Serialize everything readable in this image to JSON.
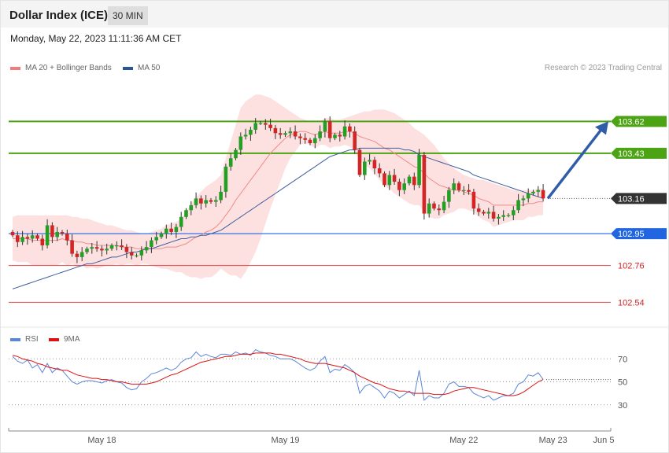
{
  "header": {
    "title": "Dollar Index (ICE)",
    "timeframe": "30 MIN"
  },
  "datetime": "Monday, May 22, 2023 11:11:36 AM CET",
  "legend": {
    "ma20_label": "MA 20 + Bollinger Bands",
    "ma20_color": "#f27b7b",
    "ma50_label": "MA 50",
    "ma50_color": "#2b5597",
    "credit": "Research © 2023 Trading Central"
  },
  "rsi_legend": {
    "rsi_label": "RSI",
    "rsi_color": "#5b86d6",
    "ma9_label": "9MA",
    "ma9_color": "#dd1111"
  },
  "chart_data": [
    {
      "type": "candlestick",
      "ylim": [
        102.42,
        103.8
      ],
      "x_ticks": [
        "May 18",
        "May 19",
        "May 22",
        "May 23",
        "Jun 5"
      ],
      "levels": [
        {
          "value": 103.62,
          "label": "103.62",
          "kind": "resistance",
          "color": "#4ca313"
        },
        {
          "value": 103.43,
          "label": "103.43",
          "kind": "resistance",
          "color": "#4ca313"
        },
        {
          "value": 103.16,
          "label": "103.16",
          "kind": "last",
          "color": "#333333"
        },
        {
          "value": 102.95,
          "label": "102.95",
          "kind": "pivot",
          "color": "#2166e0"
        },
        {
          "value": 102.76,
          "label": "102.76",
          "kind": "support",
          "color": "#e04545"
        },
        {
          "value": 102.54,
          "label": "102.54",
          "kind": "support",
          "color": "#e04545"
        }
      ],
      "closes": [
        102.94,
        102.9,
        102.93,
        102.92,
        102.94,
        102.92,
        102.88,
        103.0,
        102.93,
        102.96,
        102.95,
        102.91,
        102.83,
        102.81,
        102.84,
        102.86,
        102.87,
        102.86,
        102.85,
        102.86,
        102.88,
        102.88,
        102.87,
        102.84,
        102.82,
        102.82,
        102.85,
        102.87,
        102.91,
        102.93,
        102.95,
        102.98,
        102.96,
        102.99,
        103.05,
        103.09,
        103.12,
        103.16,
        103.13,
        103.15,
        103.14,
        103.15,
        103.2,
        103.35,
        103.4,
        103.45,
        103.53,
        103.54,
        103.57,
        103.61,
        103.61,
        103.6,
        103.58,
        103.55,
        103.54,
        103.55,
        103.56,
        103.53,
        103.52,
        103.51,
        103.49,
        103.52,
        103.56,
        103.62,
        103.52,
        103.54,
        103.53,
        103.59,
        103.56,
        103.45,
        103.3,
        103.38,
        103.39,
        103.34,
        103.31,
        103.24,
        103.3,
        103.26,
        103.21,
        103.25,
        103.29,
        103.24,
        103.42,
        103.07,
        103.13,
        103.1,
        103.09,
        103.14,
        103.21,
        103.25,
        103.21,
        103.21,
        103.2,
        103.1,
        103.08,
        103.07,
        103.08,
        103.04,
        103.05,
        103.06,
        103.06,
        103.09,
        103.15,
        103.16,
        103.19,
        103.2,
        103.21,
        103.16
      ],
      "ma20": [
        102.92,
        102.92,
        102.92,
        102.92,
        102.91,
        102.91,
        102.91,
        102.91,
        102.91,
        102.91,
        102.92,
        102.91,
        102.91,
        102.9,
        102.9,
        102.89,
        102.89,
        102.88,
        102.88,
        102.88,
        102.88,
        102.88,
        102.87,
        102.87,
        102.87,
        102.86,
        102.86,
        102.86,
        102.86,
        102.86,
        102.86,
        102.87,
        102.87,
        102.87,
        102.88,
        102.89,
        102.91,
        102.93,
        102.94,
        102.96,
        102.97,
        102.99,
        103.02,
        103.06,
        103.1,
        103.15,
        103.19,
        103.23,
        103.27,
        103.31,
        103.35,
        103.39,
        103.43,
        103.46,
        103.49,
        103.52,
        103.54,
        103.55,
        103.56,
        103.56,
        103.55,
        103.54,
        103.55,
        103.56,
        103.55,
        103.55,
        103.55,
        103.56,
        103.56,
        103.55,
        103.53,
        103.52,
        103.51,
        103.5,
        103.48,
        103.46,
        103.45,
        103.43,
        103.41,
        103.39,
        103.37,
        103.35,
        103.34,
        103.31,
        103.28,
        103.26,
        103.24,
        103.23,
        103.22,
        103.21,
        103.21,
        103.2,
        103.19,
        103.18,
        103.16,
        103.15,
        103.14,
        103.12,
        103.12,
        103.12,
        103.12,
        103.12,
        103.12,
        103.12,
        103.13,
        103.13,
        103.14,
        103.14
      ],
      "bb_upper": [
        103.05,
        103.06,
        103.06,
        103.06,
        103.06,
        103.06,
        103.06,
        103.06,
        103.06,
        103.06,
        103.06,
        103.06,
        103.05,
        103.05,
        103.04,
        103.04,
        103.03,
        103.02,
        103.01,
        103.0,
        103.0,
        102.99,
        102.98,
        102.97,
        102.97,
        102.96,
        102.95,
        102.95,
        102.96,
        102.97,
        102.98,
        103.0,
        103.01,
        103.02,
        103.04,
        103.08,
        103.13,
        103.17,
        103.2,
        103.23,
        103.25,
        103.27,
        103.3,
        103.4,
        103.5,
        103.6,
        103.7,
        103.74,
        103.76,
        103.78,
        103.78,
        103.77,
        103.76,
        103.74,
        103.72,
        103.7,
        103.68,
        103.66,
        103.64,
        103.63,
        103.62,
        103.62,
        103.62,
        103.64,
        103.64,
        103.63,
        103.63,
        103.64,
        103.65,
        103.66,
        103.67,
        103.68,
        103.68,
        103.69,
        103.69,
        103.69,
        103.68,
        103.67,
        103.65,
        103.63,
        103.61,
        103.58,
        103.56,
        103.54,
        103.51,
        103.48,
        103.44,
        103.4,
        103.37,
        103.34,
        103.32,
        103.3,
        103.29,
        103.28,
        103.27,
        103.27,
        103.26,
        103.25,
        103.24,
        103.23,
        103.22,
        103.21,
        103.21,
        103.21,
        103.21,
        103.21,
        103.22,
        103.22
      ],
      "bb_lower": [
        102.79,
        102.78,
        102.78,
        102.78,
        102.76,
        102.76,
        102.76,
        102.76,
        102.76,
        102.76,
        102.78,
        102.76,
        102.77,
        102.75,
        102.76,
        102.74,
        102.75,
        102.74,
        102.75,
        102.76,
        102.76,
        102.77,
        102.76,
        102.77,
        102.77,
        102.76,
        102.77,
        102.77,
        102.76,
        102.75,
        102.74,
        102.74,
        102.73,
        102.72,
        102.72,
        102.7,
        102.69,
        102.69,
        102.68,
        102.69,
        102.69,
        102.71,
        102.74,
        102.72,
        102.7,
        102.7,
        102.68,
        102.72,
        102.78,
        102.84,
        102.92,
        103.01,
        103.1,
        103.18,
        103.26,
        103.34,
        103.4,
        103.44,
        103.48,
        103.49,
        103.48,
        103.46,
        103.48,
        103.48,
        103.46,
        103.47,
        103.47,
        103.48,
        103.47,
        103.44,
        103.39,
        103.36,
        103.34,
        103.31,
        103.27,
        103.23,
        103.22,
        103.19,
        103.17,
        103.15,
        103.13,
        103.12,
        103.12,
        103.08,
        103.05,
        103.04,
        103.04,
        103.06,
        103.07,
        103.08,
        103.1,
        103.1,
        103.09,
        103.08,
        103.05,
        103.03,
        103.02,
        102.99,
        103.0,
        103.01,
        103.02,
        103.03,
        103.03,
        103.03,
        103.05,
        103.05,
        103.06,
        103.06
      ],
      "ma50": [
        102.62,
        102.63,
        102.64,
        102.65,
        102.66,
        102.67,
        102.68,
        102.69,
        102.7,
        102.71,
        102.72,
        102.73,
        102.74,
        102.75,
        102.76,
        102.77,
        102.77,
        102.78,
        102.79,
        102.8,
        102.81,
        102.81,
        102.82,
        102.83,
        102.84,
        102.84,
        102.85,
        102.86,
        102.86,
        102.87,
        102.88,
        102.89,
        102.9,
        102.91,
        102.92,
        102.92,
        102.93,
        102.93,
        102.94,
        102.94,
        102.95,
        102.96,
        102.97,
        102.99,
        103.01,
        103.03,
        103.05,
        103.07,
        103.09,
        103.11,
        103.13,
        103.15,
        103.17,
        103.19,
        103.21,
        103.23,
        103.25,
        103.27,
        103.29,
        103.31,
        103.33,
        103.35,
        103.37,
        103.39,
        103.41,
        103.42,
        103.43,
        103.44,
        103.45,
        103.45,
        103.46,
        103.46,
        103.46,
        103.46,
        103.46,
        103.46,
        103.46,
        103.46,
        103.46,
        103.45,
        103.45,
        103.44,
        103.42,
        103.41,
        103.4,
        103.39,
        103.38,
        103.37,
        103.36,
        103.35,
        103.34,
        103.33,
        103.32,
        103.3,
        103.29,
        103.28,
        103.27,
        103.26,
        103.25,
        103.24,
        103.23,
        103.22,
        103.21,
        103.2,
        103.19,
        103.18,
        103.17,
        103.16
      ],
      "projection": {
        "from": 103.16,
        "to": 103.62
      }
    },
    {
      "type": "line",
      "ylim": [
        10,
        90
      ],
      "y_ticks": [
        30,
        50,
        70
      ],
      "series": [
        {
          "name": "RSI",
          "values": [
            72,
            68,
            66,
            69,
            62,
            65,
            58,
            66,
            58,
            62,
            60,
            55,
            50,
            48,
            50,
            51,
            51,
            50,
            49,
            51,
            52,
            50,
            49,
            45,
            43,
            44,
            50,
            53,
            57,
            58,
            60,
            62,
            60,
            62,
            67,
            70,
            71,
            76,
            72,
            74,
            72,
            71,
            74,
            74,
            73,
            76,
            74,
            75,
            73,
            78,
            76,
            75,
            73,
            72,
            70,
            70,
            70,
            68,
            65,
            62,
            60,
            62,
            68,
            72,
            58,
            61,
            60,
            65,
            62,
            58,
            40,
            46,
            48,
            45,
            42,
            36,
            42,
            40,
            36,
            39,
            42,
            38,
            60,
            34,
            38,
            36,
            36,
            40,
            48,
            50,
            46,
            46,
            45,
            40,
            38,
            36,
            38,
            34,
            36,
            38,
            38,
            40,
            48,
            50,
            56,
            55,
            58,
            52
          ]
        },
        {
          "name": "9MA",
          "values": [
            73,
            72,
            70,
            69,
            68,
            66,
            65,
            63,
            62,
            61,
            60,
            60,
            58,
            56,
            55,
            54,
            53,
            53,
            52,
            52,
            51,
            50,
            50,
            49,
            48,
            48,
            48,
            48,
            49,
            50,
            52,
            54,
            56,
            57,
            59,
            61,
            63,
            65,
            67,
            68,
            69,
            70,
            71,
            72,
            72,
            73,
            74,
            74,
            74,
            75,
            75,
            75,
            75,
            74,
            74,
            73,
            72,
            71,
            70,
            68,
            67,
            66,
            66,
            66,
            65,
            64,
            63,
            62,
            60,
            58,
            55,
            53,
            51,
            49,
            48,
            46,
            44,
            43,
            42,
            42,
            41,
            40,
            40,
            40,
            40,
            39,
            39,
            39,
            40,
            42,
            43,
            44,
            45,
            45,
            44,
            43,
            42,
            41,
            40,
            39,
            38,
            38,
            39,
            41,
            44,
            47,
            50,
            52
          ]
        }
      ]
    }
  ]
}
